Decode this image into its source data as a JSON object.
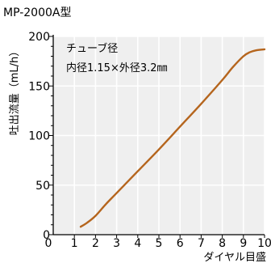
{
  "chart_data": {
    "type": "line",
    "title": "MP-2000A型",
    "xlabel": "ダイヤル目盛",
    "ylabel": "吐出流量（mL/h）",
    "xlim": [
      0,
      10
    ],
    "ylim": [
      0,
      200
    ],
    "x_ticks": [
      1,
      2,
      3,
      4,
      5,
      6,
      7,
      8,
      9,
      10
    ],
    "y_ticks": [
      0,
      50,
      100,
      150,
      200
    ],
    "grid": true,
    "annotations": [
      "チューブ径",
      "内径1.15×外径3.2㎜"
    ],
    "series": [
      {
        "color": "#b5651d",
        "x": [
          1.3,
          1.6,
          2.0,
          2.5,
          3.0,
          4.0,
          5.0,
          6.0,
          7.0,
          8.0,
          8.5,
          9.0,
          9.3,
          9.6,
          10.0
        ],
        "y": [
          8,
          12,
          19,
          31,
          42,
          64,
          86,
          109,
          132,
          156,
          169,
          180,
          184,
          186,
          187
        ]
      }
    ]
  }
}
